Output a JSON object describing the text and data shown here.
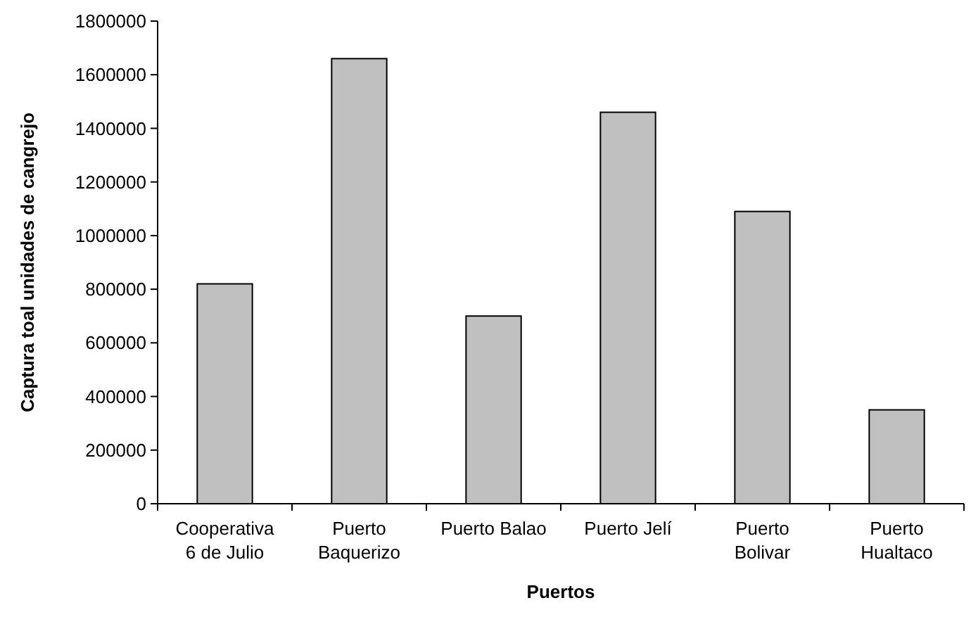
{
  "chart_data": {
    "type": "bar",
    "xlabel": "Puertos",
    "ylabel": "Captura toal unidades de cangrejo",
    "categories": [
      "Cooperativa\n6 de Julio",
      "Puerto\nBaquerizo",
      "Puerto Balao",
      "Puerto Jelí",
      "Puerto\nBolivar",
      "Puerto\nHualtaco"
    ],
    "values": [
      820000,
      1660000,
      700000,
      1460000,
      1090000,
      350000
    ],
    "color": "#c0c0c0",
    "ylim": [
      0,
      1800000
    ],
    "yticks": [
      0,
      200000,
      400000,
      600000,
      800000,
      1000000,
      1200000,
      1400000,
      1600000,
      1800000
    ],
    "grid": false
  }
}
